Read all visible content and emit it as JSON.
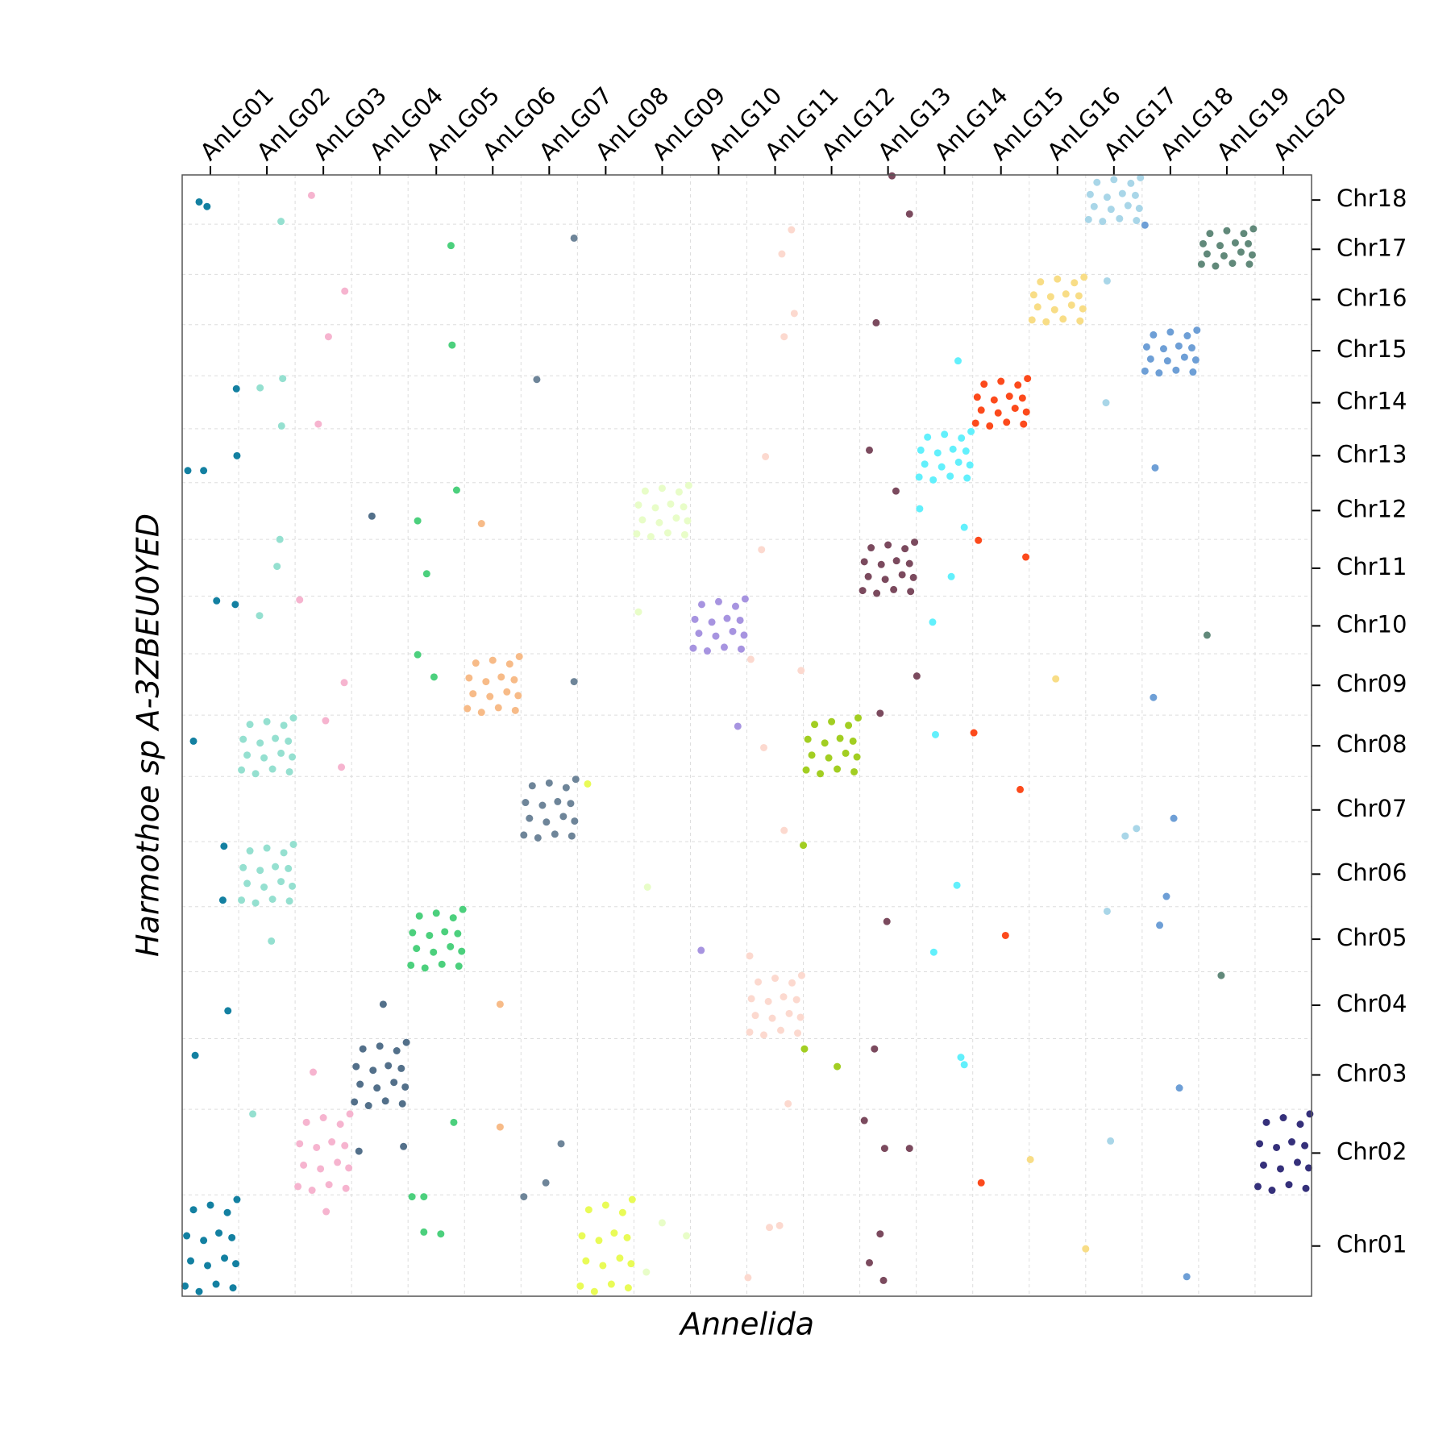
{
  "chart_data": {
    "type": "scatter",
    "xlabel": "Annelida",
    "ylabel": "Harmothoe sp A-3ZBEU0YED",
    "xlim": [
      0,
      20
    ],
    "ylim": [
      0,
      1206
    ],
    "grid": true,
    "xgrid": [
      1,
      2,
      3,
      4,
      5,
      6,
      7,
      8,
      9,
      10,
      11,
      12,
      13,
      14,
      15,
      16,
      17,
      18,
      19
    ],
    "ygrid": [
      109,
      201,
      277,
      349,
      419,
      489,
      559,
      625,
      691,
      753,
      814,
      875,
      933,
      990,
      1045,
      1099,
      1153
    ],
    "xticks": [
      {
        "value": 0.5,
        "label": "AnLG01"
      },
      {
        "value": 1.5,
        "label": "AnLG02"
      },
      {
        "value": 2.5,
        "label": "AnLG03"
      },
      {
        "value": 3.5,
        "label": "AnLG04"
      },
      {
        "value": 4.5,
        "label": "AnLG05"
      },
      {
        "value": 5.5,
        "label": "AnLG06"
      },
      {
        "value": 6.5,
        "label": "AnLG07"
      },
      {
        "value": 7.5,
        "label": "AnLG08"
      },
      {
        "value": 8.5,
        "label": "AnLG09"
      },
      {
        "value": 9.5,
        "label": "AnLG10"
      },
      {
        "value": 10.5,
        "label": "AnLG11"
      },
      {
        "value": 11.5,
        "label": "AnLG12"
      },
      {
        "value": 12.5,
        "label": "AnLG13"
      },
      {
        "value": 13.5,
        "label": "AnLG14"
      },
      {
        "value": 14.5,
        "label": "AnLG15"
      },
      {
        "value": 15.5,
        "label": "AnLG16"
      },
      {
        "value": 16.5,
        "label": "AnLG17"
      },
      {
        "value": 17.5,
        "label": "AnLG18"
      },
      {
        "value": 18.5,
        "label": "AnLG19"
      },
      {
        "value": 19.5,
        "label": "AnLG20"
      }
    ],
    "yticks": [
      {
        "value": 54,
        "label": "Chr01"
      },
      {
        "value": 154,
        "label": "Chr02"
      },
      {
        "value": 238,
        "label": "Chr03"
      },
      {
        "value": 313,
        "label": "Chr04"
      },
      {
        "value": 384,
        "label": "Chr05"
      },
      {
        "value": 454,
        "label": "Chr06"
      },
      {
        "value": 523,
        "label": "Chr07"
      },
      {
        "value": 592,
        "label": "Chr08"
      },
      {
        "value": 657,
        "label": "Chr09"
      },
      {
        "value": 721,
        "label": "Chr10"
      },
      {
        "value": 783,
        "label": "Chr11"
      },
      {
        "value": 845,
        "label": "Chr12"
      },
      {
        "value": 904,
        "label": "Chr13"
      },
      {
        "value": 961,
        "label": "Chr14"
      },
      {
        "value": 1017,
        "label": "Chr15"
      },
      {
        "value": 1072,
        "label": "Chr16"
      },
      {
        "value": 1126,
        "label": "Chr17"
      },
      {
        "value": 1179,
        "label": "Chr18"
      }
    ],
    "series": [
      {
        "color": "#1380a1",
        "x": [
          0.05,
          0.3,
          0.6,
          0.9,
          0.15,
          0.45,
          0.75,
          0.95,
          0.08,
          0.38,
          0.65,
          0.88,
          0.2,
          0.5,
          0.8,
          0.97,
          0.3,
          0.44,
          0.96,
          0.97,
          0.1,
          0.38,
          0.61,
          0.94,
          0.2,
          0.74,
          0.72,
          0.81,
          0.23
        ],
        "y": [
          11,
          5,
          13,
          9,
          38,
          33,
          41,
          35,
          65,
          60,
          68,
          63,
          93,
          98,
          90,
          104,
          1177,
          1172,
          976,
          904,
          888,
          888,
          748,
          744,
          597,
          484,
          426,
          307,
          259
        ]
      },
      {
        "color": "#95e0d0",
        "x": [
          1.05,
          1.3,
          1.6,
          1.9,
          1.15,
          1.45,
          1.75,
          1.95,
          1.08,
          1.38,
          1.65,
          1.88,
          1.2,
          1.5,
          1.8,
          1.97,
          1.05,
          1.3,
          1.6,
          1.9,
          1.15,
          1.45,
          1.75,
          1.95,
          1.08,
          1.38,
          1.65,
          1.88,
          1.2,
          1.5,
          1.8,
          1.97,
          1.75,
          1.38,
          1.78,
          1.76,
          1.73,
          1.68,
          1.37,
          1.58,
          1.25
        ],
        "y": [
          566,
          562,
          567,
          564,
          582,
          579,
          584,
          580,
          599,
          595,
          600,
          597,
          615,
          618,
          614,
          622,
          426,
          423,
          427,
          425,
          444,
          440,
          446,
          441,
          461,
          458,
          462,
          460,
          479,
          482,
          477,
          486,
          1156,
          977,
          987,
          936,
          814,
          785,
          732,
          382,
          196
        ]
      },
      {
        "color": "#f6b4cf",
        "x": [
          2.05,
          2.3,
          2.6,
          2.9,
          2.15,
          2.45,
          2.75,
          2.95,
          2.08,
          2.38,
          2.65,
          2.88,
          2.2,
          2.5,
          2.8,
          2.97,
          2.29,
          2.88,
          2.59,
          2.41,
          2.08,
          2.87,
          2.54,
          2.82,
          2.32,
          2.55
        ],
        "y": [
          118,
          114,
          120,
          116,
          141,
          137,
          144,
          138,
          164,
          160,
          166,
          162,
          187,
          192,
          185,
          196,
          1184,
          1081,
          1032,
          938,
          749,
          660,
          619,
          569,
          241,
          91
        ]
      },
      {
        "color": "#53708a",
        "x": [
          3.05,
          3.3,
          3.6,
          3.9,
          3.15,
          3.45,
          3.75,
          3.95,
          3.08,
          3.38,
          3.65,
          3.88,
          3.2,
          3.5,
          3.8,
          3.97,
          3.36,
          3.56,
          3.13,
          3.92
        ],
        "y": [
          209,
          205,
          210,
          207,
          228,
          224,
          230,
          225,
          247,
          243,
          248,
          245,
          266,
          269,
          264,
          273,
          839,
          314,
          156,
          161
        ]
      },
      {
        "color": "#4cd07d",
        "x": [
          4.05,
          4.3,
          4.6,
          4.9,
          4.15,
          4.45,
          4.75,
          4.95,
          4.08,
          4.38,
          4.65,
          4.88,
          4.2,
          4.5,
          4.8,
          4.97,
          4.76,
          4.78,
          4.86,
          4.17,
          4.33,
          4.17,
          4.46,
          4.81,
          4.07,
          4.28,
          4.28,
          4.58
        ],
        "y": [
          356,
          353,
          357,
          355,
          374,
          370,
          376,
          371,
          391,
          388,
          392,
          390,
          409,
          412,
          407,
          416,
          1130,
          1023,
          867,
          834,
          777,
          690,
          666,
          187,
          107,
          107,
          69,
          67
        ]
      },
      {
        "color": "#f7bb88",
        "x": [
          5.05,
          5.3,
          5.6,
          5.9,
          5.15,
          5.45,
          5.75,
          5.95,
          5.08,
          5.38,
          5.65,
          5.88,
          5.2,
          5.5,
          5.8,
          5.97,
          5.3,
          5.63,
          5.63
        ],
        "y": [
          632,
          628,
          633,
          630,
          648,
          645,
          650,
          646,
          665,
          661,
          666,
          663,
          681,
          684,
          680,
          688,
          831,
          314,
          182
        ]
      },
      {
        "color": "#6e8599",
        "x": [
          6.05,
          6.3,
          6.6,
          6.9,
          6.15,
          6.45,
          6.75,
          6.95,
          6.08,
          6.38,
          6.65,
          6.88,
          6.2,
          6.5,
          6.8,
          6.97,
          6.94,
          6.28,
          6.94,
          6.71,
          6.44,
          6.05
        ],
        "y": [
          496,
          493,
          497,
          495,
          514,
          510,
          516,
          511,
          531,
          528,
          532,
          530,
          549,
          552,
          547,
          556,
          1138,
          986,
          661,
          164,
          122,
          107
        ]
      },
      {
        "color": "#e9fb57",
        "x": [
          7.05,
          7.3,
          7.6,
          7.9,
          7.15,
          7.45,
          7.75,
          7.95,
          7.08,
          7.38,
          7.65,
          7.88,
          7.2,
          7.5,
          7.8,
          7.97,
          7.18
        ],
        "y": [
          11,
          5,
          13,
          9,
          38,
          33,
          41,
          35,
          65,
          60,
          68,
          63,
          93,
          98,
          90,
          104,
          551
        ]
      },
      {
        "color": "#e8fdc8",
        "x": [
          8.05,
          8.3,
          8.6,
          8.9,
          8.15,
          8.45,
          8.75,
          8.95,
          8.08,
          8.38,
          8.65,
          8.88,
          8.2,
          8.5,
          8.8,
          8.97,
          8.5,
          8.93,
          8.22,
          8.08,
          8.24
        ],
        "y": [
          820,
          817,
          821,
          819,
          835,
          832,
          837,
          834,
          851,
          848,
          852,
          849,
          866,
          869,
          865,
          872,
          79,
          65,
          26,
          736,
          440
        ]
      },
      {
        "color": "#a794e0",
        "x": [
          9.05,
          9.3,
          9.6,
          9.9,
          9.15,
          9.45,
          9.75,
          9.95,
          9.08,
          9.38,
          9.65,
          9.88,
          9.2,
          9.5,
          9.8,
          9.97,
          9.84,
          9.19
        ],
        "y": [
          697,
          694,
          698,
          696,
          713,
          710,
          715,
          711,
          728,
          725,
          729,
          727,
          744,
          747,
          742,
          750,
          613,
          372
        ]
      },
      {
        "color": "#fcd9cf",
        "x": [
          10.05,
          10.3,
          10.6,
          10.9,
          10.15,
          10.45,
          10.75,
          10.95,
          10.08,
          10.38,
          10.65,
          10.88,
          10.2,
          10.5,
          10.8,
          10.97,
          10.79,
          10.62,
          10.84,
          10.66,
          10.33,
          10.26,
          10.07,
          10.96,
          10.3,
          10.66,
          10.05,
          10.73,
          10.4,
          10.58,
          10.02
        ],
        "y": [
          284,
          281,
          286,
          283,
          302,
          299,
          304,
          300,
          320,
          317,
          322,
          319,
          338,
          342,
          337,
          345,
          1147,
          1121,
          1057,
          1032,
          903,
          803,
          685,
          673,
          590,
          501,
          366,
          207,
          74,
          76,
          20
        ]
      },
      {
        "color": "#a2ce22",
        "x": [
          11.05,
          11.3,
          11.6,
          11.9,
          11.15,
          11.45,
          11.75,
          11.95,
          11.08,
          11.38,
          11.65,
          11.88,
          11.2,
          11.5,
          11.8,
          11.97,
          11,
          11.02,
          11.6
        ],
        "y": [
          566,
          562,
          567,
          564,
          582,
          579,
          584,
          580,
          599,
          595,
          600,
          597,
          615,
          618,
          614,
          622,
          485,
          266,
          247
        ]
      },
      {
        "color": "#7b4a5e",
        "x": [
          12.05,
          12.3,
          12.6,
          12.9,
          12.15,
          12.45,
          12.75,
          12.95,
          12.08,
          12.38,
          12.65,
          12.88,
          12.2,
          12.5,
          12.8,
          12.97,
          12.57,
          12.88,
          12.29,
          12.17,
          12.64,
          13.01,
          12.36,
          12.48,
          12.26,
          12.08,
          12.44,
          12.88,
          12.36,
          12.17,
          12.42
        ],
        "y": [
          759,
          756,
          760,
          758,
          774,
          771,
          776,
          773,
          790,
          787,
          791,
          788,
          805,
          808,
          804,
          811,
          1205,
          1164,
          1047,
          910,
          866,
          667,
          627,
          403,
          266,
          189,
          159,
          159,
          67,
          36,
          17
        ]
      },
      {
        "color": "#62f0fc",
        "x": [
          13.05,
          13.3,
          13.6,
          13.9,
          13.15,
          13.45,
          13.75,
          13.95,
          13.08,
          13.38,
          13.65,
          13.88,
          13.2,
          13.5,
          13.8,
          13.97,
          13.74,
          13.06,
          13.85,
          13.62,
          13.29,
          13.34,
          13.72,
          13.31,
          13.79,
          13.85
        ],
        "y": [
          881,
          878,
          882,
          880,
          895,
          892,
          897,
          894,
          910,
          907,
          911,
          909,
          924,
          927,
          923,
          930,
          1006,
          847,
          827,
          774,
          725,
          604,
          442,
          370,
          257,
          249
        ]
      },
      {
        "color": "#fc4a1c",
        "x": [
          14.05,
          14.3,
          14.6,
          14.9,
          14.15,
          14.45,
          14.75,
          14.95,
          14.08,
          14.38,
          14.65,
          14.88,
          14.2,
          14.5,
          14.8,
          14.97,
          14.1,
          14.94,
          14.02,
          14.84,
          14.58,
          14.15
        ],
        "y": [
          939,
          936,
          940,
          938,
          953,
          950,
          955,
          951,
          967,
          964,
          968,
          966,
          981,
          984,
          980,
          987,
          813,
          795,
          606,
          545,
          388,
          122
        ]
      },
      {
        "color": "#f8dd86",
        "x": [
          15.05,
          15.3,
          15.6,
          15.9,
          15.15,
          15.45,
          15.75,
          15.95,
          15.08,
          15.38,
          15.65,
          15.88,
          15.2,
          15.5,
          15.8,
          15.97,
          15.47,
          15.02,
          16
        ],
        "y": [
          1050,
          1048,
          1051,
          1049,
          1064,
          1061,
          1066,
          1062,
          1077,
          1075,
          1078,
          1076,
          1091,
          1094,
          1090,
          1096,
          664,
          147,
          51
        ]
      },
      {
        "color": "#a9d6e8",
        "x": [
          16.05,
          16.3,
          16.6,
          16.9,
          16.15,
          16.45,
          16.75,
          16.95,
          16.08,
          16.38,
          16.65,
          16.88,
          16.2,
          16.5,
          16.8,
          16.97,
          16.38,
          16.36,
          16.7,
          16.9,
          16.38,
          16.44
        ],
        "y": [
          1158,
          1156,
          1159,
          1157,
          1172,
          1169,
          1173,
          1170,
          1185,
          1182,
          1186,
          1184,
          1198,
          1201,
          1197,
          1203,
          1092,
          961,
          495,
          503,
          414,
          167
        ]
      },
      {
        "color": "#6e9fd6",
        "x": [
          17.05,
          17.3,
          17.6,
          17.9,
          17.15,
          17.45,
          17.75,
          17.95,
          17.08,
          17.38,
          17.65,
          17.88,
          17.2,
          17.5,
          17.8,
          17.97,
          17.05,
          17.23,
          17.2,
          17.56,
          17.43,
          17.31,
          17.66,
          17.79
        ],
        "y": [
          995,
          993,
          996,
          994,
          1008,
          1006,
          1010,
          1007,
          1021,
          1019,
          1022,
          1020,
          1034,
          1037,
          1033,
          1039,
          1152,
          891,
          644,
          514,
          430,
          399,
          224,
          21
        ]
      },
      {
        "color": "#61897a",
        "x": [
          18.05,
          18.3,
          18.6,
          18.9,
          18.15,
          18.45,
          18.75,
          18.95,
          18.08,
          18.38,
          18.65,
          18.88,
          18.2,
          18.5,
          18.8,
          18.97,
          18.15,
          18.4
        ],
        "y": [
          1110,
          1108,
          1111,
          1110,
          1121,
          1119,
          1123,
          1120,
          1132,
          1130,
          1133,
          1132,
          1143,
          1146,
          1143,
          1148,
          711,
          345
        ]
      },
      {
        "color": "#35307a",
        "x": [
          19.05,
          19.3,
          19.6,
          19.9,
          19.15,
          19.45,
          19.75,
          19.95,
          19.08,
          19.38,
          19.65,
          19.88,
          19.2,
          19.5,
          19.8,
          19.97
        ],
        "y": [
          118,
          114,
          120,
          116,
          141,
          137,
          144,
          138,
          164,
          160,
          166,
          162,
          187,
          192,
          185,
          196
        ]
      }
    ]
  }
}
